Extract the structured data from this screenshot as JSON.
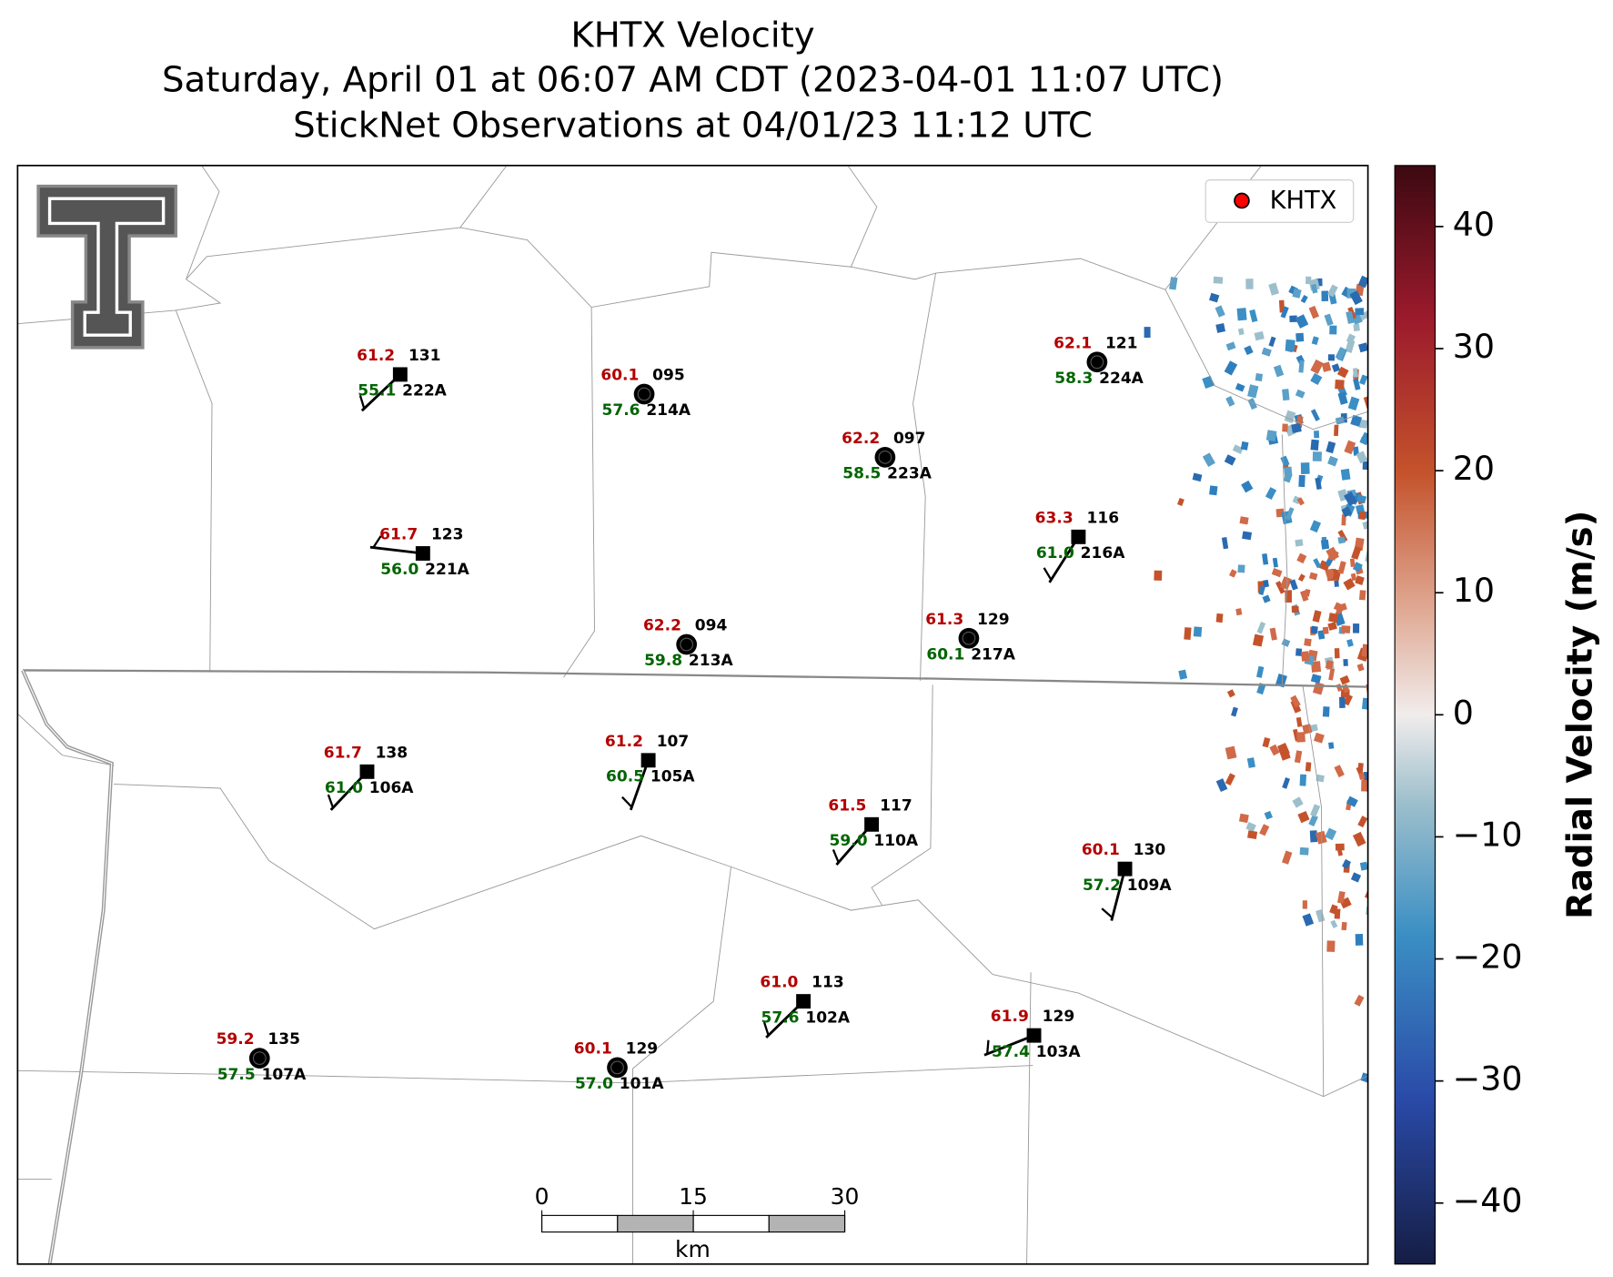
{
  "title": [
    "KHTX Velocity",
    "Saturday, April 01 at 06:07 AM CDT (2023-04-01 11:07 UTC)",
    "StickNet Observations at 04/01/23 11:12 UTC"
  ],
  "legend": {
    "label": "KHTX",
    "color": "#ff0000"
  },
  "colorbar": {
    "label": "Radial Velocity (m/s)",
    "lim": [
      -45,
      45
    ],
    "ticks": [
      {
        "value": -40,
        "label": "−40"
      },
      {
        "value": -30,
        "label": "−30"
      },
      {
        "value": -20,
        "label": "−20"
      },
      {
        "value": -10,
        "label": "−10"
      },
      0,
      10,
      20,
      30,
      40
    ]
  },
  "scale_bar": {
    "ticks": [
      0,
      15,
      30
    ],
    "unit": "km"
  },
  "stations": [
    {
      "id": "222A",
      "temperature": "61.2",
      "dewpoint": "55.1",
      "code": "131",
      "marker": "square"
    },
    {
      "id": "214A",
      "temperature": "60.1",
      "dewpoint": "57.6",
      "code": "095",
      "marker": "circle"
    },
    {
      "id": "223A",
      "temperature": "62.2",
      "dewpoint": "58.5",
      "code": "097",
      "marker": "circle"
    },
    {
      "id": "224A",
      "temperature": "62.1",
      "dewpoint": "58.3",
      "code": "121",
      "marker": "circle"
    },
    {
      "id": "221A",
      "temperature": "61.7",
      "dewpoint": "56.0",
      "code": "123",
      "marker": "square"
    },
    {
      "id": "216A",
      "temperature": "63.3",
      "dewpoint": "61.0",
      "code": "116",
      "marker": "square"
    },
    {
      "id": "213A",
      "temperature": "62.2",
      "dewpoint": "59.8",
      "code": "094",
      "marker": "circle"
    },
    {
      "id": "217A",
      "temperature": "61.3",
      "dewpoint": "60.1",
      "code": "129",
      "marker": "circle"
    },
    {
      "id": "106A",
      "temperature": "61.7",
      "dewpoint": "61.0",
      "code": "138",
      "marker": "square"
    },
    {
      "id": "105A",
      "temperature": "61.2",
      "dewpoint": "60.5",
      "code": "107",
      "marker": "square"
    },
    {
      "id": "110A",
      "temperature": "61.5",
      "dewpoint": "59.0",
      "code": "117",
      "marker": "square"
    },
    {
      "id": "109A",
      "temperature": "60.1",
      "dewpoint": "57.2",
      "code": "130",
      "marker": "square"
    },
    {
      "id": "102A",
      "temperature": "61.0",
      "dewpoint": "57.6",
      "code": "113",
      "marker": "square"
    },
    {
      "id": "103A",
      "temperature": "61.9",
      "dewpoint": "57.4",
      "code": "129",
      "marker": "square"
    },
    {
      "id": "107A",
      "temperature": "59.2",
      "dewpoint": "57.5",
      "code": "135",
      "marker": "circle"
    },
    {
      "id": "101A",
      "temperature": "60.1",
      "dewpoint": "57.0",
      "code": "129",
      "marker": "circle"
    }
  ]
}
